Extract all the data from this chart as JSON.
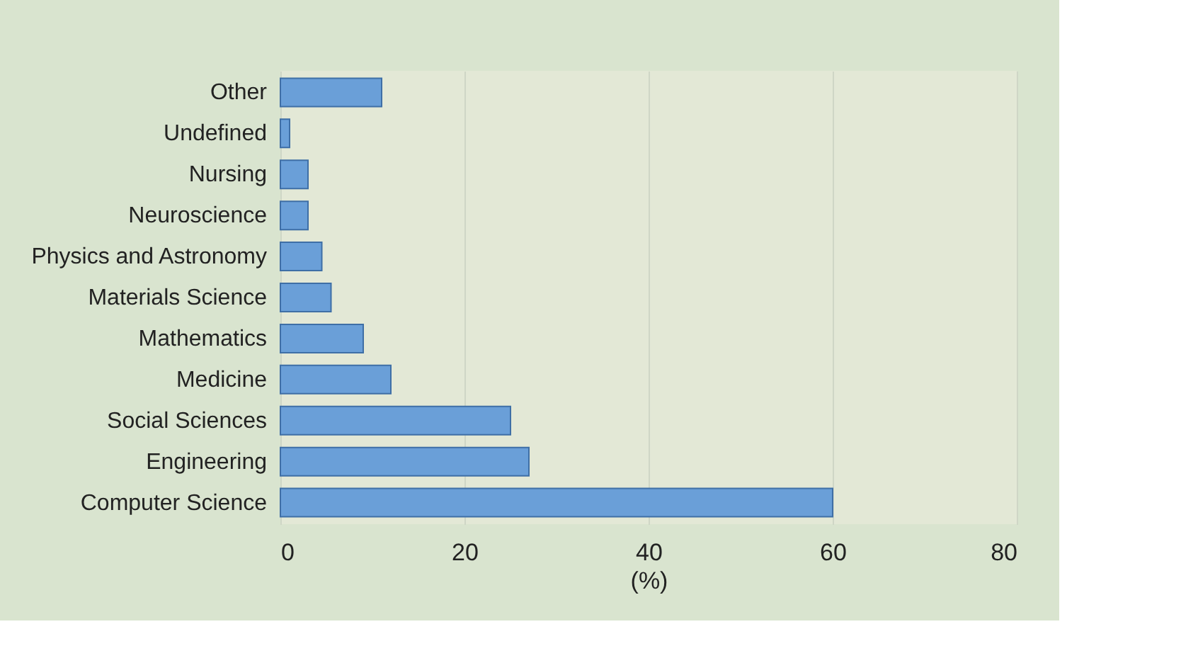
{
  "chart_data": {
    "type": "bar",
    "orientation": "horizontal",
    "xlabel": "(%)",
    "categories": [
      "Other",
      "Undefined",
      "Nursing",
      "Neuroscience",
      "Physics and Astronomy",
      "Materials Science",
      "Mathematics",
      "Medicine",
      "Social Sciences",
      "Engineering",
      "Computer Science"
    ],
    "values": [
      11,
      1,
      3,
      3,
      4.5,
      5.5,
      9,
      12,
      25,
      27,
      60
    ],
    "color": "#6a9fd8",
    "xlim": [
      0,
      80
    ],
    "xticks": [
      0,
      20,
      40,
      60,
      80
    ],
    "grid": "x"
  }
}
